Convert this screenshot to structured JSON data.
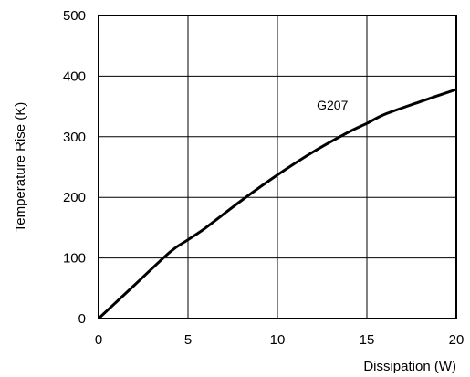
{
  "chart_data": {
    "type": "line",
    "title": "",
    "xlabel": "Dissipation (W)",
    "ylabel": "Temperature Rise (K)",
    "xlim": [
      0,
      20
    ],
    "ylim": [
      0,
      500
    ],
    "xticks": [
      0,
      5,
      10,
      15,
      20
    ],
    "yticks": [
      0,
      100,
      200,
      300,
      400,
      500
    ],
    "grid": true,
    "legend": "none",
    "series": [
      {
        "name": "G207",
        "color": "#000000",
        "x": [
          0,
          2,
          4,
          5,
          6,
          8,
          10,
          12,
          14,
          15,
          16,
          18,
          20
        ],
        "y": [
          0,
          55,
          110,
          130,
          150,
          195,
          237,
          275,
          308,
          322,
          337,
          358,
          378
        ]
      }
    ],
    "annotations": [
      {
        "text": "G207",
        "x": 12.2,
        "y": 345
      }
    ]
  }
}
